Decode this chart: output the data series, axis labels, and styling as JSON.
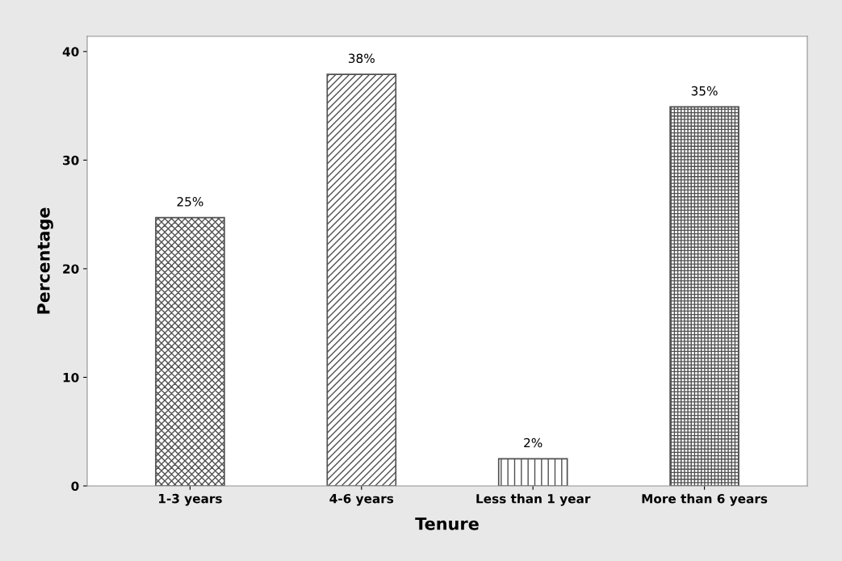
{
  "chart_data": {
    "type": "bar",
    "xlabel": "Tenure",
    "ylabel": "Percentage",
    "categories": [
      "1-3 years",
      "4-6 years",
      "Less than 1 year",
      "More than 6 years"
    ],
    "values": [
      24.7,
      37.9,
      2.5,
      34.9
    ],
    "value_labels": [
      "25%",
      "38%",
      "2%",
      "35%"
    ],
    "color": "#505050",
    "ylim": [
      0,
      41.4
    ],
    "yticks": [
      0,
      10,
      20,
      30,
      40
    ],
    "grid": false,
    "legend": false
  }
}
